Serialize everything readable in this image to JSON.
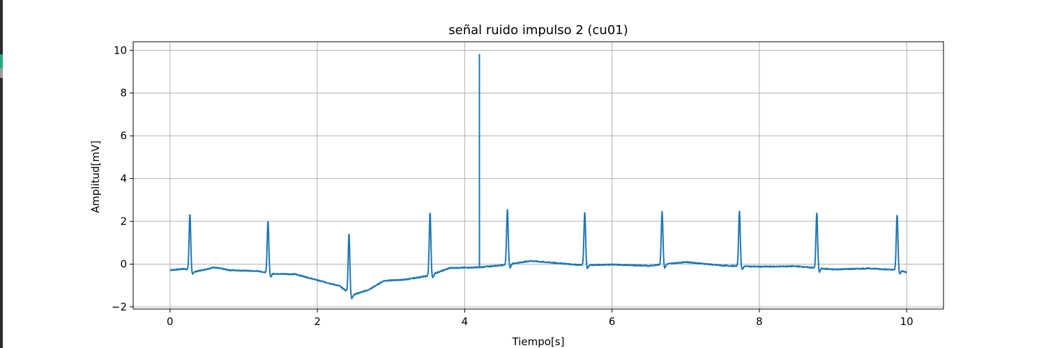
{
  "chart_data": {
    "type": "line",
    "title": "señal ruido impulso 2 (cu01)",
    "xlabel": "Tiempo[s]",
    "ylabel": "Amplitud[mV]",
    "xlim": [
      -0.5,
      10.5
    ],
    "ylim": [
      -2.1,
      10.4
    ],
    "xticks": [
      0,
      2,
      4,
      6,
      8,
      10
    ],
    "yticks": [
      -2,
      0,
      2,
      4,
      6,
      8,
      10
    ],
    "xtick_labels": [
      "0",
      "2",
      "4",
      "6",
      "8",
      "10"
    ],
    "ytick_labels": [
      "−2",
      "0",
      "2",
      "4",
      "6",
      "8",
      "10"
    ],
    "grid": true,
    "line_color": "#1f77b4",
    "grid_color": "#b0b0b0",
    "series": [
      {
        "baseline": [
          [
            0.0,
            -0.28
          ],
          [
            0.2,
            -0.22
          ],
          [
            0.35,
            -0.35
          ],
          [
            0.6,
            -0.15
          ],
          [
            0.8,
            -0.28
          ],
          [
            1.2,
            -0.33
          ],
          [
            1.4,
            -0.45
          ],
          [
            1.7,
            -0.47
          ],
          [
            2.0,
            -0.75
          ],
          [
            2.3,
            -1.02
          ],
          [
            2.47,
            -1.45
          ],
          [
            2.7,
            -1.2
          ],
          [
            2.9,
            -0.78
          ],
          [
            3.2,
            -0.72
          ],
          [
            3.5,
            -0.55
          ],
          [
            3.8,
            -0.18
          ],
          [
            4.2,
            -0.15
          ],
          [
            4.5,
            -0.05
          ],
          [
            4.9,
            0.15
          ],
          [
            5.6,
            -0.05
          ],
          [
            6.0,
            -0.02
          ],
          [
            6.5,
            -0.08
          ],
          [
            7.0,
            0.1
          ],
          [
            7.5,
            -0.07
          ],
          [
            8.0,
            -0.12
          ],
          [
            8.5,
            -0.1
          ],
          [
            9.0,
            -0.25
          ],
          [
            9.5,
            -0.2
          ],
          [
            9.9,
            -0.28
          ],
          [
            10.0,
            -0.38
          ]
        ],
        "peaks": [
          [
            0.27,
            2.35
          ],
          [
            1.33,
            2.02
          ],
          [
            2.43,
            1.42
          ],
          [
            3.53,
            2.4
          ],
          [
            4.58,
            2.55
          ],
          [
            5.63,
            2.42
          ],
          [
            6.68,
            2.47
          ],
          [
            7.73,
            2.5
          ],
          [
            8.78,
            2.4
          ],
          [
            9.87,
            2.33
          ]
        ],
        "impulse": [
          4.2,
          9.8
        ]
      }
    ]
  }
}
